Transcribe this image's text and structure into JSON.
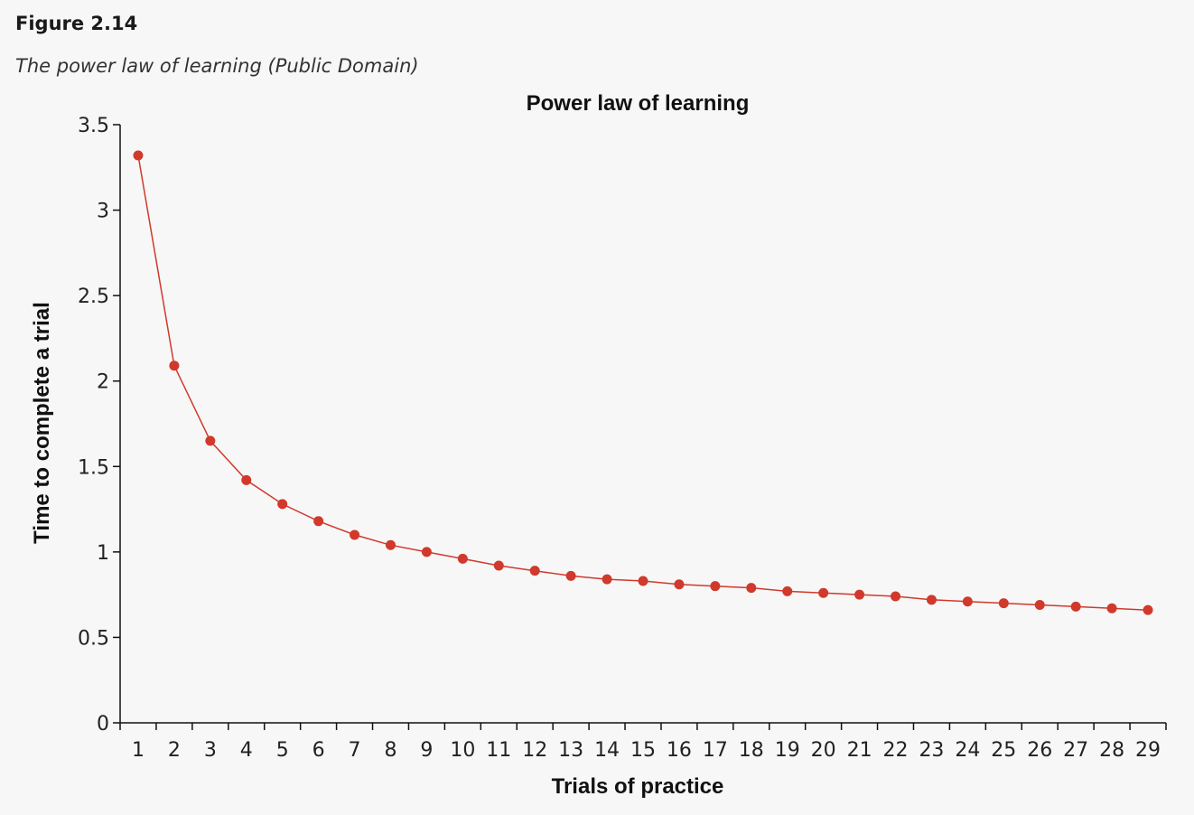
{
  "figure": {
    "label": "Figure 2.14",
    "caption": "The power law of learning (Public Domain)"
  },
  "chart_data": {
    "type": "line",
    "title": "Power law of learning",
    "xlabel": "Trials of practice",
    "ylabel": "Time to complete a trial",
    "x": [
      1,
      2,
      3,
      4,
      5,
      6,
      7,
      8,
      9,
      10,
      11,
      12,
      13,
      14,
      15,
      16,
      17,
      18,
      19,
      20,
      21,
      22,
      23,
      24,
      25,
      26,
      27,
      28,
      29
    ],
    "values": [
      3.32,
      2.09,
      1.65,
      1.42,
      1.28,
      1.18,
      1.1,
      1.04,
      1.0,
      0.96,
      0.92,
      0.89,
      0.86,
      0.84,
      0.83,
      0.81,
      0.8,
      0.79,
      0.77,
      0.76,
      0.75,
      0.74,
      0.72,
      0.71,
      0.7,
      0.69,
      0.68,
      0.67,
      0.66
    ],
    "ylim": [
      0,
      3.5
    ],
    "yticks": [
      "0",
      "0.5",
      "1",
      "1.5",
      "2",
      "2.5",
      "3",
      "3.5"
    ],
    "xticks": [
      "1",
      "2",
      "3",
      "4",
      "5",
      "6",
      "7",
      "8",
      "9",
      "10",
      "11",
      "12",
      "13",
      "14",
      "15",
      "16",
      "17",
      "18",
      "19",
      "20",
      "21",
      "22",
      "23",
      "24",
      "25",
      "26",
      "27",
      "28",
      "29"
    ],
    "color": "#d0392b",
    "grid": false,
    "legend": "none"
  }
}
